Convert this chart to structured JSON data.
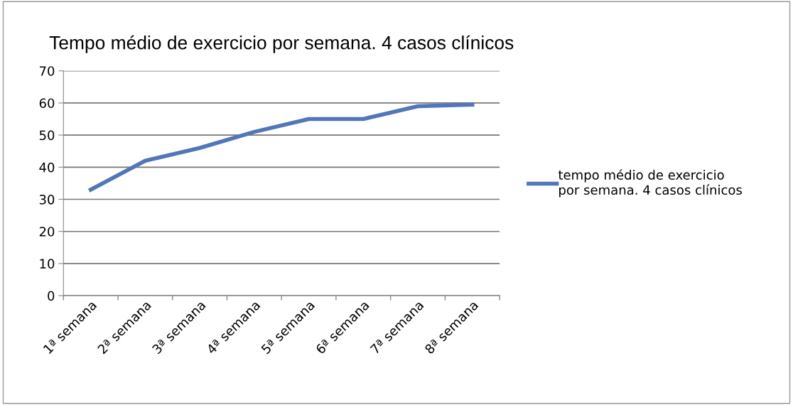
{
  "chart_data": {
    "type": "line",
    "title": "Tempo médio de exercicio por semana. 4 casos clínicos",
    "categories": [
      "1ª semana",
      "2ª semana",
      "3ª semana",
      "4ª semana",
      "5ª semana",
      "6ª semana",
      "7ª semana",
      "8ª semana"
    ],
    "series": [
      {
        "name": "tempo médio de exercicio\npor semana. 4 casos clínicos",
        "color": "#5276b9",
        "values": [
          33,
          42,
          46,
          51,
          55,
          55,
          59,
          59.5
        ]
      }
    ],
    "ylim": [
      0,
      70
    ],
    "yticks": [
      0,
      10,
      20,
      30,
      40,
      50,
      60,
      70
    ],
    "grid": "y",
    "legend": "right",
    "marker": "none",
    "line_style": "solid"
  }
}
